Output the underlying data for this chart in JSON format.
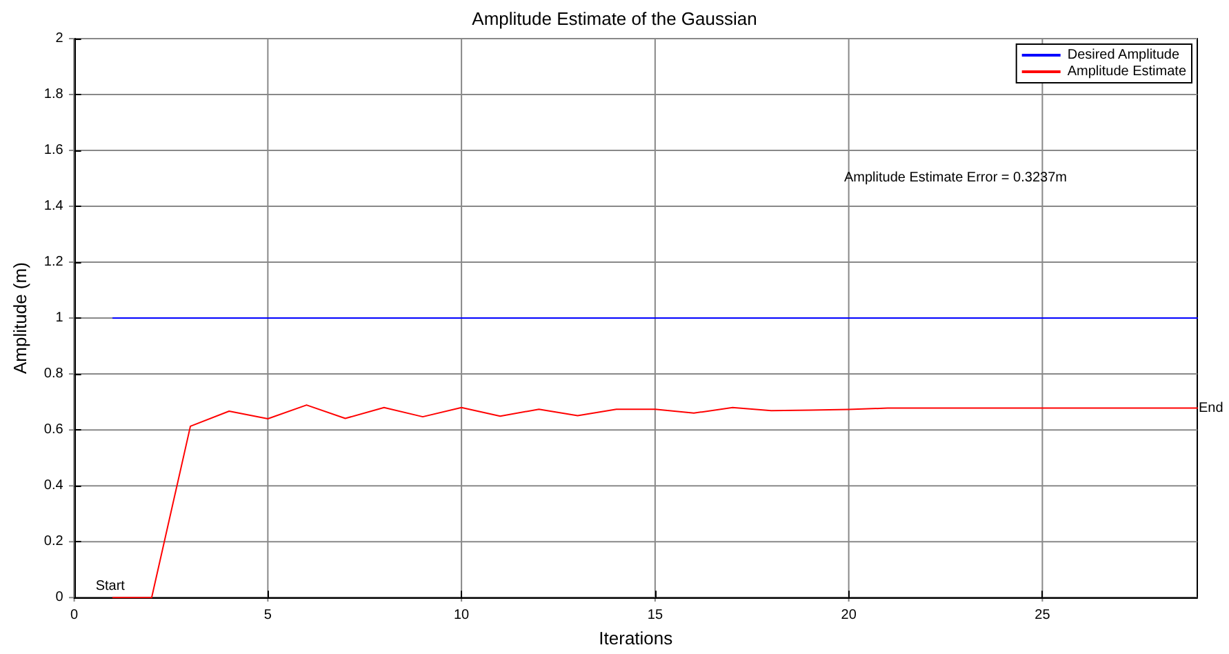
{
  "chart_data": {
    "type": "line",
    "title": "Amplitude Estimate of the Gaussian",
    "xlabel": "Iterations",
    "ylabel": "Amplitude (m)",
    "annotations": [
      "Amplitude Estimate Error = 0.3237m",
      {
        "text": "Start",
        "x": 1,
        "y": 0
      },
      {
        "text": "End",
        "x": 29,
        "y": 0.678
      }
    ],
    "x": [
      1,
      2,
      3,
      4,
      5,
      6,
      7,
      8,
      9,
      10,
      11,
      12,
      13,
      14,
      15,
      16,
      17,
      18,
      19,
      20,
      21,
      22,
      23,
      24,
      25,
      26,
      27,
      28,
      29
    ],
    "series": [
      {
        "name": "Desired Amplitude",
        "color": "#0000ff",
        "values": [
          1,
          1,
          1,
          1,
          1,
          1,
          1,
          1,
          1,
          1,
          1,
          1,
          1,
          1,
          1,
          1,
          1,
          1,
          1,
          1,
          1,
          1,
          1,
          1,
          1,
          1,
          1,
          1,
          1
        ]
      },
      {
        "name": "Amplitude Estimate",
        "color": "#ff0000",
        "values": [
          0,
          0,
          0.613,
          0.667,
          0.64,
          0.689,
          0.641,
          0.68,
          0.647,
          0.68,
          0.649,
          0.674,
          0.651,
          0.674,
          0.674,
          0.66,
          0.68,
          0.669,
          0.671,
          0.673,
          0.678,
          0.678,
          0.678,
          0.678,
          0.678,
          0.678,
          0.678,
          0.678,
          0.678
        ]
      }
    ],
    "xlim": [
      0,
      29
    ],
    "xticks": [
      0,
      5,
      10,
      15,
      20,
      25
    ],
    "ylim": [
      0,
      2
    ],
    "yticks": [
      0,
      0.2,
      0.4,
      0.6,
      0.8,
      1,
      1.2,
      1.4,
      1.6,
      1.8,
      2
    ],
    "grid": true,
    "legend": "top right",
    "marker": "none",
    "line_style": "solid"
  }
}
